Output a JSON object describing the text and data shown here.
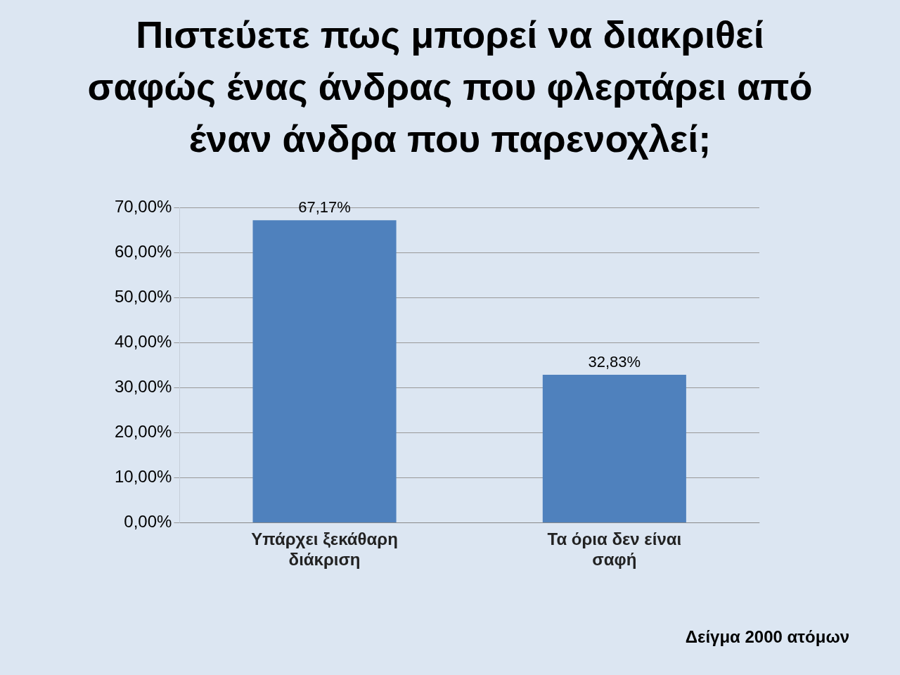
{
  "chart_data": {
    "type": "bar",
    "title": "Πιστεύετε πως μπορεί να διακριθεί σαφώς ένας άνδρας που φλερτάρει από έναν άνδρα που παρενοχλεί;",
    "categories": [
      "Υπάρχει ξεκάθαρη διάκριση",
      "Τα όρια δεν είναι σαφή"
    ],
    "values": [
      67.17,
      32.83
    ],
    "color": "#4f81bd",
    "value_labels": [
      "67,17%",
      "32,83%"
    ],
    "ylim": [
      0,
      70
    ],
    "yticks": [
      {
        "value": 0,
        "label": "0,00%"
      },
      {
        "value": 10,
        "label": "10,00%"
      },
      {
        "value": 20,
        "label": "20,00%"
      },
      {
        "value": 30,
        "label": "30,00%"
      },
      {
        "value": 40,
        "label": "40,00%"
      },
      {
        "value": 50,
        "label": "50,00%"
      },
      {
        "value": 60,
        "label": "60,00%"
      },
      {
        "value": 70,
        "label": "70,00%"
      }
    ],
    "grid": "y",
    "annotations": [
      "Δείγμα 2000 ατόμων"
    ]
  }
}
